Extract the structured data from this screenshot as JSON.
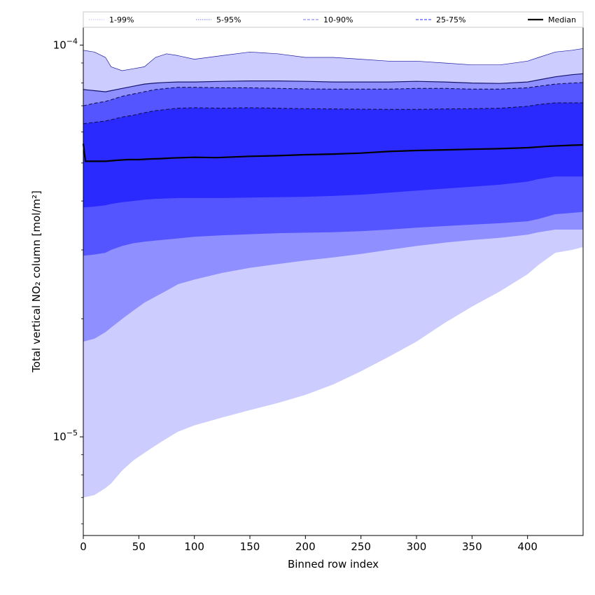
{
  "chart_data": {
    "type": "area",
    "title": "",
    "xlabel": "Binned row index",
    "ylabel": "Total vertical NO₂ column [mol/m²]",
    "xlim": [
      0,
      450
    ],
    "ylim": [
      5.6e-06,
      0.000111
    ],
    "y_scale": "log",
    "x_ticks": [
      0,
      50,
      100,
      150,
      200,
      250,
      300,
      350,
      400
    ],
    "x_tick_labels": [
      "0",
      "50",
      "100",
      "150",
      "200",
      "250",
      "300",
      "350",
      "400"
    ],
    "y_ticks_major": [
      1e-05,
      0.0001
    ],
    "y_tick_labels": [
      "10⁻⁵",
      "10⁻⁴"
    ],
    "grid": false,
    "legend_position": "top",
    "x": [
      0,
      10,
      20,
      25,
      35,
      45,
      55,
      65,
      75,
      85,
      100,
      125,
      150,
      175,
      200,
      225,
      250,
      275,
      300,
      325,
      350,
      375,
      400,
      410,
      425,
      440,
      450
    ],
    "bands": [
      {
        "name": "1-99%",
        "color": "#ccccff",
        "lower": [
          7e-06,
          7.1e-06,
          7.4e-06,
          7.6e-06,
          8.2e-06,
          8.7e-06,
          9.1e-06,
          9.5e-06,
          9.9e-06,
          1.03e-05,
          1.07e-05,
          1.12e-05,
          1.17e-05,
          1.22e-05,
          1.28e-05,
          1.36e-05,
          1.47e-05,
          1.6e-05,
          1.75e-05,
          1.95e-05,
          2.15e-05,
          2.35e-05,
          2.6e-05,
          2.75e-05,
          2.95e-05,
          3e-05,
          3.05e-05
        ],
        "upper": [
          9.7e-05,
          9.6e-05,
          9.3e-05,
          8.8e-05,
          8.6e-05,
          8.7e-05,
          8.8e-05,
          9.3e-05,
          9.5e-05,
          9.4e-05,
          9.2e-05,
          9.4e-05,
          9.6e-05,
          9.5e-05,
          9.3e-05,
          9.3e-05,
          9.2e-05,
          9.1e-05,
          9.1e-05,
          9e-05,
          8.9e-05,
          8.9e-05,
          9.1e-05,
          9.3e-05,
          9.6e-05,
          9.7e-05,
          9.8e-05
        ]
      },
      {
        "name": "5-95%",
        "color": "#8f8fff",
        "lower": [
          1.75e-05,
          1.78e-05,
          1.85e-05,
          1.9e-05,
          2e-05,
          2.1e-05,
          2.2e-05,
          2.28e-05,
          2.36e-05,
          2.45e-05,
          2.52e-05,
          2.62e-05,
          2.7e-05,
          2.76e-05,
          2.82e-05,
          2.87e-05,
          2.93e-05,
          3e-05,
          3.07e-05,
          3.13e-05,
          3.18e-05,
          3.22e-05,
          3.28e-05,
          3.33e-05,
          3.38e-05,
          3.38e-05,
          3.38e-05
        ],
        "upper": [
          7.7e-05,
          7.65e-05,
          7.6e-05,
          7.65e-05,
          7.75e-05,
          7.85e-05,
          7.95e-05,
          8e-05,
          8.03e-05,
          8.05e-05,
          8.05e-05,
          8.08e-05,
          8.1e-05,
          8.1e-05,
          8.08e-05,
          8.05e-05,
          8.05e-05,
          8.05e-05,
          8.08e-05,
          8.05e-05,
          8e-05,
          7.98e-05,
          8.05e-05,
          8.15e-05,
          8.3e-05,
          8.4e-05,
          8.45e-05
        ]
      },
      {
        "name": "10-90%",
        "color": "#5555ff",
        "lower": [
          2.9e-05,
          2.92e-05,
          2.95e-05,
          3e-05,
          3.07e-05,
          3.12e-05,
          3.15e-05,
          3.17e-05,
          3.19e-05,
          3.21e-05,
          3.24e-05,
          3.27e-05,
          3.29e-05,
          3.31e-05,
          3.32e-05,
          3.33e-05,
          3.35e-05,
          3.38e-05,
          3.42e-05,
          3.45e-05,
          3.48e-05,
          3.51e-05,
          3.55e-05,
          3.6e-05,
          3.7e-05,
          3.73e-05,
          3.75e-05
        ],
        "upper": [
          7e-05,
          7.1e-05,
          7.18e-05,
          7.25e-05,
          7.4e-05,
          7.5e-05,
          7.6e-05,
          7.7e-05,
          7.75e-05,
          7.8e-05,
          7.8e-05,
          7.78e-05,
          7.78e-05,
          7.75e-05,
          7.73e-05,
          7.72e-05,
          7.72e-05,
          7.72e-05,
          7.75e-05,
          7.75e-05,
          7.72e-05,
          7.72e-05,
          7.78e-05,
          7.85e-05,
          7.95e-05,
          8e-05,
          8.02e-05
        ]
      },
      {
        "name": "25-75%",
        "color": "#2a2aff",
        "lower": [
          3.85e-05,
          3.87e-05,
          3.9e-05,
          3.93e-05,
          3.97e-05,
          4e-05,
          4.03e-05,
          4.05e-05,
          4.06e-05,
          4.07e-05,
          4.07e-05,
          4.07e-05,
          4.08e-05,
          4.09e-05,
          4.1e-05,
          4.12e-05,
          4.15e-05,
          4.2e-05,
          4.25e-05,
          4.3e-05,
          4.35e-05,
          4.4e-05,
          4.48e-05,
          4.55e-05,
          4.62e-05,
          4.62e-05,
          4.62e-05
        ],
        "upper": [
          6.3e-05,
          6.35e-05,
          6.4e-05,
          6.45e-05,
          6.55e-05,
          6.62e-05,
          6.72e-05,
          6.8e-05,
          6.85e-05,
          6.9e-05,
          6.92e-05,
          6.9e-05,
          6.92e-05,
          6.9e-05,
          6.88e-05,
          6.87e-05,
          6.86e-05,
          6.85e-05,
          6.85e-05,
          6.87e-05,
          6.88e-05,
          6.9e-05,
          6.98e-05,
          7.05e-05,
          7.12e-05,
          7.12e-05,
          7.12e-05
        ]
      }
    ],
    "median": {
      "name": "Median",
      "color": "#000000",
      "x": [
        0,
        1,
        2,
        10,
        20,
        30,
        40,
        50,
        60,
        70,
        80,
        100,
        120,
        150,
        175,
        200,
        225,
        250,
        275,
        300,
        325,
        350,
        375,
        400,
        420,
        440,
        450
      ],
      "values": [
        5.6e-05,
        5.3e-05,
        5.05e-05,
        5.05e-05,
        5.05e-05,
        5.08e-05,
        5.1e-05,
        5.1e-05,
        5.12e-05,
        5.13e-05,
        5.15e-05,
        5.17e-05,
        5.16e-05,
        5.2e-05,
        5.22e-05,
        5.25e-05,
        5.27e-05,
        5.3e-05,
        5.35e-05,
        5.38e-05,
        5.4e-05,
        5.42e-05,
        5.44e-05,
        5.47e-05,
        5.52e-05,
        5.55e-05,
        5.56e-05
      ]
    },
    "legend": [
      {
        "label": "1-99%",
        "style": "dotted",
        "color": "#ccccff"
      },
      {
        "label": "5-95%",
        "style": "dotted",
        "color": "#8f8fff"
      },
      {
        "label": "10-90%",
        "style": "dashed",
        "color": "#8f8fff"
      },
      {
        "label": "25-75%",
        "style": "dashed",
        "color": "#5555ff"
      },
      {
        "label": "Median",
        "style": "solid",
        "color": "#000000"
      }
    ]
  }
}
